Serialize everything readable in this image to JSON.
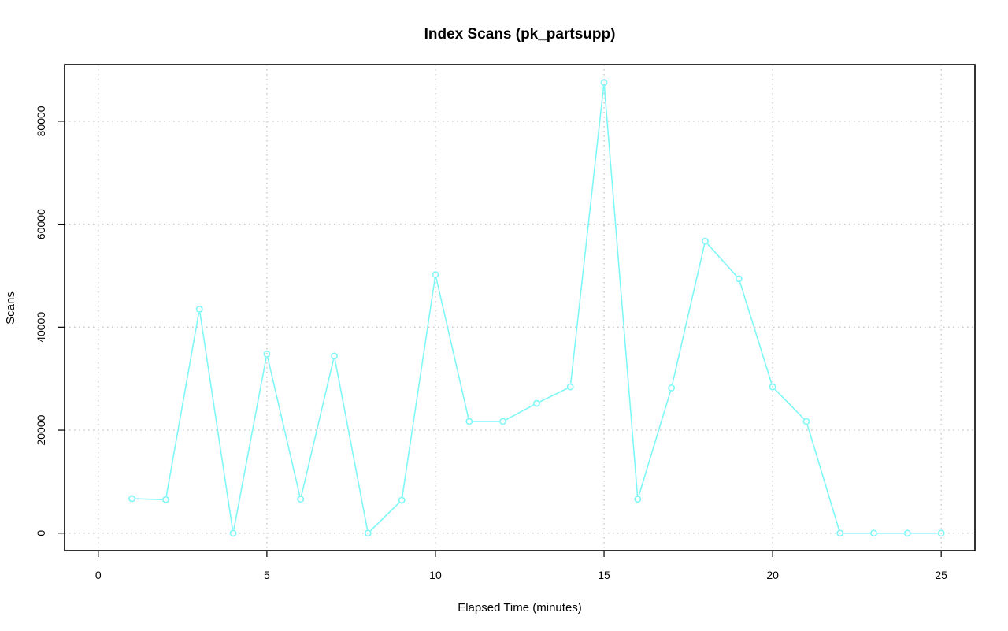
{
  "chart_data": {
    "type": "line",
    "title": "Index Scans (pk_partsupp)",
    "xlabel": "Elapsed Time (minutes)",
    "ylabel": "Scans",
    "xlim": [
      -1,
      26
    ],
    "ylim": [
      -3400,
      91000
    ],
    "x_ticks": [
      0,
      5,
      10,
      15,
      20,
      25
    ],
    "y_ticks": [
      0,
      20000,
      40000,
      60000,
      80000
    ],
    "grid": true,
    "series": [
      {
        "color": "#7ff7f7",
        "marker": "open-circle",
        "x": [
          1,
          2,
          3,
          4,
          5,
          6,
          7,
          8,
          9,
          10,
          11,
          12,
          13,
          14,
          15,
          16,
          17,
          18,
          19,
          20,
          21,
          22,
          23,
          24,
          25
        ],
        "y": [
          6700,
          6500,
          43500,
          0,
          34800,
          6600,
          34400,
          0,
          6400,
          50200,
          21700,
          21700,
          25200,
          28400,
          87500,
          6600,
          28200,
          56700,
          49400,
          28400,
          21700,
          0,
          0,
          0,
          0
        ]
      }
    ]
  }
}
